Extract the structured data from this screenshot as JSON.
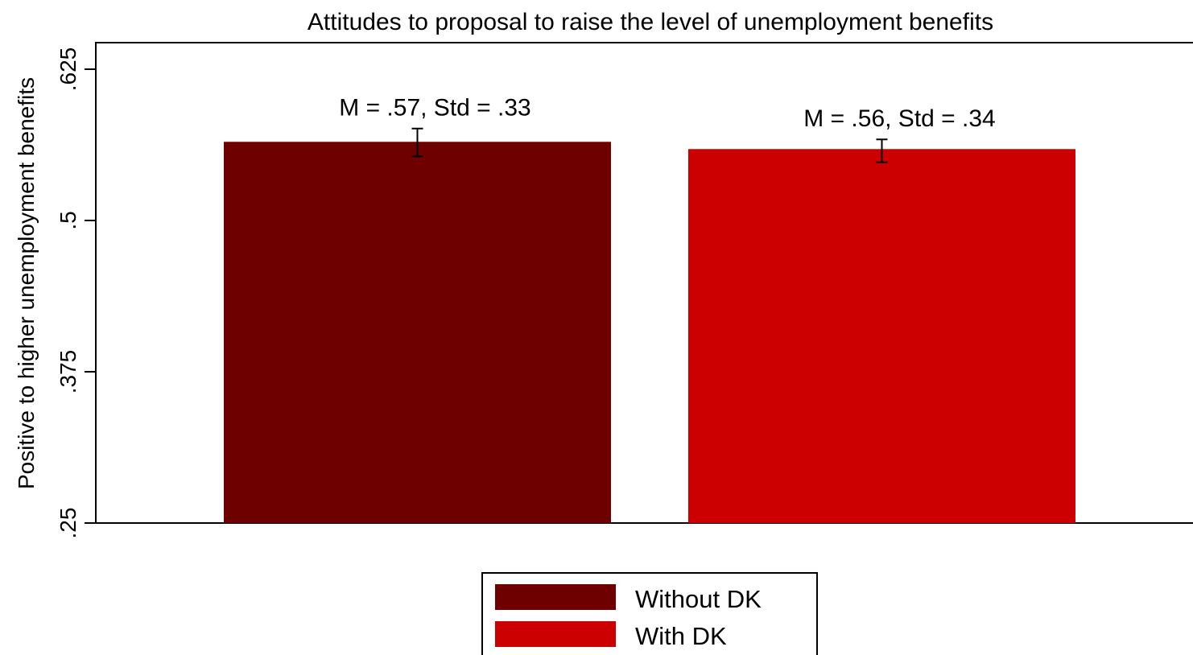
{
  "chart_data": {
    "type": "bar",
    "title": "Attitudes to proposal to raise the level of unemployment benefits",
    "xlabel": "",
    "ylabel": "Positive to higher unemployment benefits",
    "ylim": [
      0.25,
      0.65
    ],
    "y_ticks": [
      0.25,
      0.375,
      0.5,
      0.625
    ],
    "y_tick_labels": [
      ".25",
      ".375",
      ".5",
      ".625"
    ],
    "grid": false,
    "legend_position": "bottom",
    "series": [
      {
        "name": "Without DK",
        "value": 0.565,
        "ci": [
          0.553,
          0.576
        ],
        "annotation": "M = .57, Std = .33",
        "color": "#6e0000"
      },
      {
        "name": "With DK",
        "value": 0.559,
        "ci": [
          0.548,
          0.567
        ],
        "annotation": "M = .56, Std = .34",
        "color": "#cc0000"
      }
    ]
  }
}
